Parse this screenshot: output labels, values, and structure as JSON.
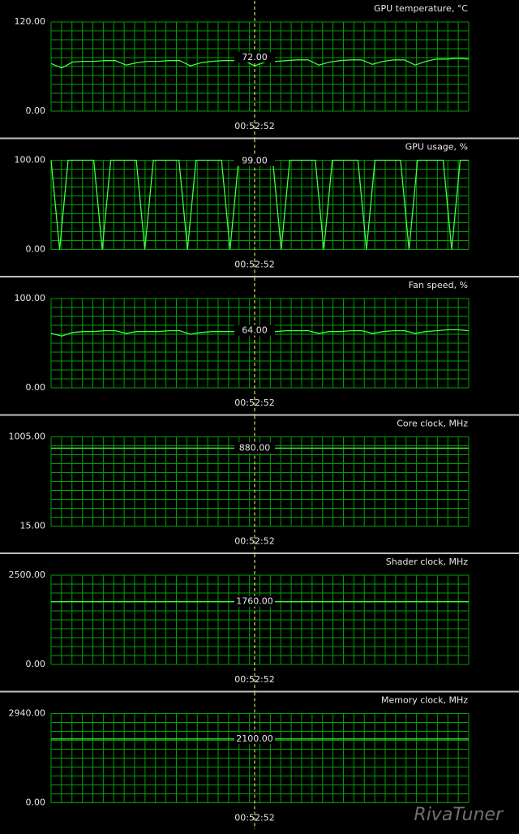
{
  "chart_data": [
    {
      "type": "line",
      "title": "GPU temperature, °C",
      "color": "#40ff40",
      "ylim": [
        0,
        120
      ],
      "yticks": [
        {
          "value": 0,
          "label": "0.00"
        },
        {
          "value": 120,
          "label": "120.00"
        }
      ],
      "values": [
        64,
        58,
        66,
        67,
        67,
        68,
        68,
        62,
        65,
        67,
        67,
        68,
        68,
        61,
        65,
        67,
        68,
        68,
        68,
        61,
        66,
        67,
        68,
        69,
        69,
        62,
        66,
        68,
        69,
        69,
        63,
        67,
        69,
        69,
        62,
        67,
        70,
        70,
        71,
        70
      ],
      "cursor": {
        "value": 72,
        "label": "72.00",
        "time": "00:52:52"
      }
    },
    {
      "type": "line",
      "title": "GPU usage, %",
      "color": "#40ff40",
      "ylim": [
        0,
        100
      ],
      "yticks": [
        {
          "value": 0,
          "label": "0.00"
        },
        {
          "value": 100,
          "label": "100.00"
        }
      ],
      "values": [
        100,
        0,
        100,
        100,
        100,
        100,
        0,
        100,
        100,
        100,
        100,
        0,
        100,
        100,
        100,
        100,
        0,
        100,
        100,
        100,
        100,
        0,
        100,
        100,
        100,
        100,
        100,
        0,
        100,
        100,
        100,
        100,
        0,
        100,
        100,
        100,
        100,
        0,
        100,
        100,
        100,
        100,
        0,
        100,
        100,
        100,
        100,
        0,
        100,
        100
      ],
      "cursor": {
        "value": 99,
        "label": "99.00",
        "time": "00:52:52"
      }
    },
    {
      "type": "line",
      "title": "Fan speed, %",
      "color": "#40ff40",
      "ylim": [
        0,
        100
      ],
      "yticks": [
        {
          "value": 0,
          "label": "0.00"
        },
        {
          "value": 100,
          "label": "100.00"
        }
      ],
      "values": [
        61,
        58,
        62,
        63,
        63,
        64,
        64,
        61,
        63,
        63,
        63,
        64,
        64,
        60,
        62,
        63,
        63,
        63,
        63,
        60,
        62,
        63,
        64,
        64,
        64,
        61,
        63,
        63,
        64,
        64,
        61,
        63,
        64,
        64,
        61,
        63,
        64,
        65,
        65,
        64
      ],
      "cursor": {
        "value": 64,
        "label": "64.00",
        "time": "00:52:52"
      }
    },
    {
      "type": "line",
      "title": "Core clock, MHz",
      "color": "#40ff40",
      "ylim": [
        15,
        1005
      ],
      "yticks": [
        {
          "value": 15,
          "label": "15.00"
        },
        {
          "value": 1005,
          "label": "1005.00"
        }
      ],
      "values": [
        880,
        880,
        880,
        880,
        880,
        880,
        880,
        880,
        880,
        880
      ],
      "cursor": {
        "value": 880,
        "label": "880.00",
        "time": "00:52:52"
      }
    },
    {
      "type": "line",
      "title": "Shader clock, MHz",
      "color": "#40ff40",
      "ylim": [
        0,
        2500
      ],
      "yticks": [
        {
          "value": 0,
          "label": "0.00"
        },
        {
          "value": 2500,
          "label": "2500.00"
        }
      ],
      "values": [
        1760,
        1760,
        1760,
        1760,
        1760,
        1760,
        1760,
        1760,
        1760,
        1760
      ],
      "cursor": {
        "value": 1760,
        "label": "1760.00",
        "time": "00:52:52"
      }
    },
    {
      "type": "line",
      "title": "Memory clock, MHz",
      "color": "#40ff40",
      "ylim": [
        0,
        2940
      ],
      "yticks": [
        {
          "value": 0,
          "label": "0.00"
        },
        {
          "value": 2940,
          "label": "2940.00"
        }
      ],
      "values": [
        2100,
        2100,
        2100,
        2100,
        2100,
        2100,
        2100,
        2100,
        2100,
        2100
      ],
      "cursor": {
        "value": 2100,
        "label": "2100.00",
        "time": "00:52:52"
      }
    }
  ],
  "watermark": "RivaTuner"
}
